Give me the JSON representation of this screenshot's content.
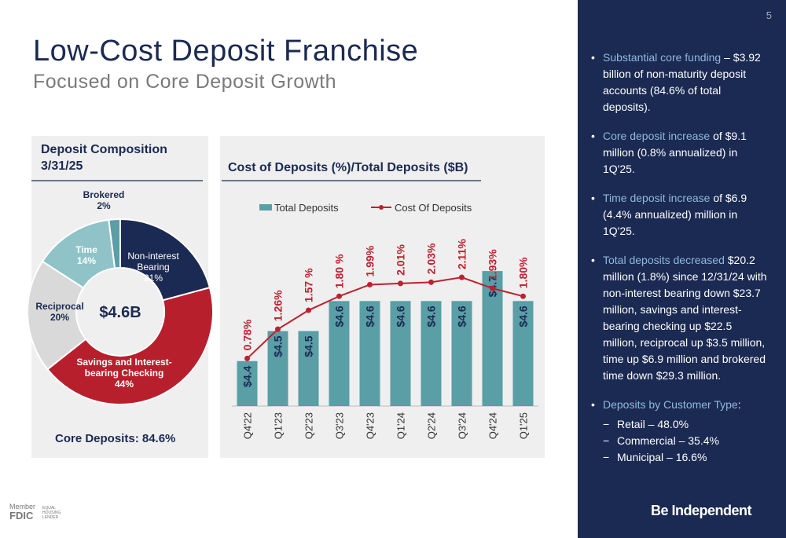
{
  "page_number": "5",
  "title": "Low-Cost Deposit Franchise",
  "subtitle": "Focused on Core Deposit Growth",
  "chart_data": [
    {
      "type": "donut",
      "title": "Deposit Composition 3/31/25",
      "categories": [
        "Non-interest Bearing",
        "Savings and Interest-bearing Checking",
        "Reciprocal",
        "Time",
        "Brokered"
      ],
      "values": [
        21,
        44,
        20,
        14,
        2
      ],
      "value_labels": [
        "21%",
        "44%",
        "20%",
        "14%",
        "2%"
      ],
      "colors": [
        "#1b2a52",
        "#b81f2d",
        "#d9d9d9",
        "#8fc3c8",
        "#5a9ea6"
      ],
      "center_label": "$4.6B",
      "footer": "Core Deposits: 84.6%"
    },
    {
      "type": "combo",
      "title": "Cost of Deposits (%)/Total Deposits ($B)",
      "categories": [
        "Q4'22",
        "Q1'23",
        "Q2'23",
        "Q3'23",
        "Q4'23",
        "Q1'24",
        "Q2'24",
        "Q3'24",
        "Q4'24",
        "Q1'25"
      ],
      "ylim": [
        4.25,
        4.86
      ],
      "y2lim": [
        0,
        3
      ],
      "series": [
        {
          "name": "Total Deposits",
          "type": "bar",
          "color": "#5a9ea6",
          "values": [
            4.4,
            4.5,
            4.5,
            4.6,
            4.6,
            4.6,
            4.6,
            4.6,
            4.7,
            4.6
          ],
          "value_labels": [
            "$4.4",
            "$4.5",
            "$4.5",
            "$4.6",
            "$4.6",
            "$4.6",
            "$4.6",
            "$4.6",
            "$4.7",
            "$4.6"
          ]
        },
        {
          "name": "Cost Of Deposits",
          "type": "line",
          "axis": "y2",
          "color": "#c0202e",
          "values": [
            0.78,
            1.26,
            1.57,
            1.8,
            1.99,
            2.01,
            2.03,
            2.11,
            1.93,
            1.8
          ],
          "value_labels": [
            "0.78%",
            "1.26%",
            "1.57 %",
            "1.80 %",
            "1.99%",
            "2.01%",
            "2.03%",
            "2.11%",
            "1.93%",
            "1.80%"
          ]
        }
      ]
    }
  ],
  "sidebar": {
    "bullets": [
      {
        "lead": "Substantial core funding",
        "text": " – $3.92 billion of non-maturity deposit accounts (84.6% of total deposits)."
      },
      {
        "lead": "Core deposit increase",
        "text": " of $9.1 million (0.8% annualized) in 1Q'25."
      },
      {
        "lead": "Time deposit increase",
        "text": " of $6.9 (4.4% annualized) million in 1Q'25."
      },
      {
        "lead": "Total deposits decreased",
        "text": " $20.2 million (1.8%) since 12/31/24 with non-interest bearing down $23.7 million, savings and interest-bearing checking up $22.5 million, reciprocal up $3.5 million, time up $6.9 million and brokered time down $29.3 million."
      },
      {
        "lead": "Deposits by Customer Type",
        "text": ":",
        "subitems": [
          "Retail – 48.0%",
          "Commercial – 35.4%",
          "Municipal – 16.6%"
        ]
      }
    ],
    "brand": "Be Independent"
  },
  "footer": {
    "member": "Member",
    "fdic": "FDIC",
    "lender": "EQUAL HOUSING LENDER"
  }
}
